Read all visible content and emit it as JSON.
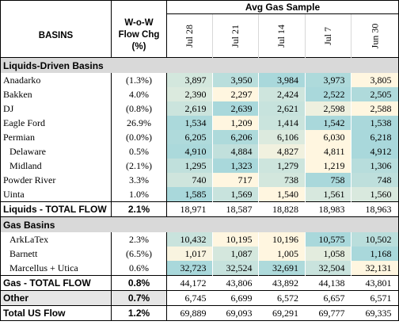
{
  "header": {
    "group_title": "Avg Gas Sample",
    "basins_label": "BASINS",
    "wow_label_line1": "W-o-W",
    "wow_label_line2": "Flow Chg",
    "wow_label_line3": "(%)",
    "dates": [
      "Jul 28",
      "Jul 21",
      "Jul 14",
      "Jul 7",
      "Jun 30"
    ]
  },
  "colors": {
    "low": "#fff6e0",
    "high": "#a9d8db",
    "section_gray": "#d9d9d9"
  },
  "sections": [
    {
      "title": "Liquids-Driven Basins",
      "rows": [
        {
          "name": "Anadarko",
          "wow": "(1.3%)",
          "values": [
            "3,897",
            "3,950",
            "3,984",
            "3,973",
            "3,805"
          ],
          "indent": false
        },
        {
          "name": "Bakken",
          "wow": "4.0%",
          "values": [
            "2,390",
            "2,297",
            "2,424",
            "2,522",
            "2,505"
          ],
          "indent": false
        },
        {
          "name": "DJ",
          "wow": "(0.8%)",
          "values": [
            "2,619",
            "2,639",
            "2,621",
            "2,598",
            "2,588"
          ],
          "indent": false
        },
        {
          "name": "Eagle Ford",
          "wow": "26.9%",
          "values": [
            "1,534",
            "1,209",
            "1,414",
            "1,542",
            "1,538"
          ],
          "indent": false
        },
        {
          "name": "Permian",
          "wow": "(0.0%)",
          "values": [
            "6,205",
            "6,206",
            "6,106",
            "6,030",
            "6,218"
          ],
          "indent": false
        },
        {
          "name": "Delaware",
          "wow": "0.5%",
          "values": [
            "4,910",
            "4,884",
            "4,827",
            "4,811",
            "4,912"
          ],
          "indent": true
        },
        {
          "name": "Midland",
          "wow": "(2.1%)",
          "values": [
            "1,295",
            "1,323",
            "1,279",
            "1,219",
            "1,306"
          ],
          "indent": true
        },
        {
          "name": "Powder River",
          "wow": "3.3%",
          "values": [
            "740",
            "717",
            "738",
            "758",
            "748"
          ],
          "indent": false
        },
        {
          "name": "Uinta",
          "wow": "1.0%",
          "values": [
            "1,585",
            "1,569",
            "1,540",
            "1,561",
            "1,560"
          ],
          "indent": false
        }
      ],
      "total": {
        "name": "Liquids - TOTAL FLOW",
        "wow": "2.1%",
        "values": [
          "18,971",
          "18,587",
          "18,828",
          "18,983",
          "18,963"
        ]
      }
    },
    {
      "title": "Gas Basins",
      "rows": [
        {
          "name": "ArkLaTex",
          "wow": "2.3%",
          "values": [
            "10,432",
            "10,195",
            "10,196",
            "10,575",
            "10,502"
          ],
          "indent": true
        },
        {
          "name": "Barnett",
          "wow": "(6.5%)",
          "values": [
            "1,017",
            "1,087",
            "1,005",
            "1,058",
            "1,168"
          ],
          "indent": true
        },
        {
          "name": "Marcellus + Utica",
          "wow": "0.6%",
          "values": [
            "32,723",
            "32,524",
            "32,691",
            "32,504",
            "32,131"
          ],
          "indent": true
        }
      ],
      "total": {
        "name": "Gas - TOTAL FLOW",
        "wow": "0.8%",
        "values": [
          "44,172",
          "43,806",
          "43,892",
          "44,138",
          "43,801"
        ]
      }
    }
  ],
  "other": {
    "name": "Other",
    "wow": "0.7%",
    "values": [
      "6,745",
      "6,699",
      "6,572",
      "6,657",
      "6,571"
    ]
  },
  "grand_total": {
    "name": "Total US Flow",
    "wow": "1.2%",
    "values": [
      "69,889",
      "69,093",
      "69,291",
      "69,777",
      "69,335"
    ]
  }
}
